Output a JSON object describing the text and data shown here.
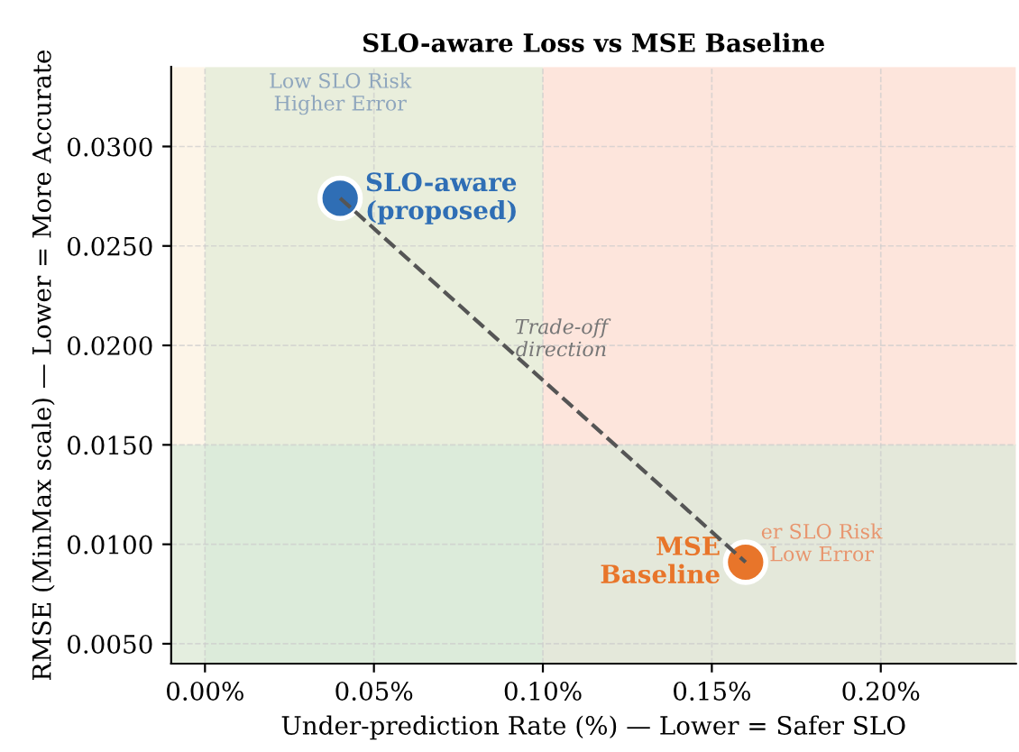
{
  "chart_data": {
    "type": "scatter",
    "title": "SLO-aware Loss vs MSE Baseline",
    "xlabel": "Under-prediction Rate (%) — Lower = Safer SLO",
    "ylabel": "RMSE (MinMax scale) — Lower = More Accurate",
    "series": [
      {
        "type": "line",
        "color": "#555555",
        "line_style": "dashed",
        "marker": "none",
        "values": [
          0.0274,
          0.0091
        ]
      },
      {
        "name": "SLO-aware\n(proposed)",
        "color": "#2f6eb5",
        "marker": "circle",
        "values": [
          0.0274,
          null
        ]
      },
      {
        "name": "MSE\nBaseline",
        "color": "#e8752a",
        "marker": "circle",
        "values": [
          null,
          0.0091
        ]
      }
    ],
    "bands": [
      {
        "axis": "x",
        "from": -0.01,
        "to": 0,
        "color": "#fdf5e8"
      },
      {
        "axis": "x",
        "from": 0,
        "to": 0.1,
        "color": "#e9eedc"
      },
      {
        "axis": "x",
        "from": 0.1,
        "to": 0.24,
        "color": "#fde5dc"
      },
      {
        "axis": "y",
        "from": 0.004,
        "to": 0.015,
        "color": "#d4ead8"
      }
    ],
    "annotations": [
      "Low SLO Risk\nHigher Error",
      "er SLO Risk\nLow Error",
      {
        "text": "Trade-off\ndirection",
        "x": 0.101,
        "y": 0.0203
      }
    ],
    "x": [
      0.04,
      0.16
    ],
    "xlim": [
      -0.01,
      0.24
    ],
    "ylim": [
      0.004,
      0.034
    ],
    "xticks": [
      {
        "value": 0,
        "label": "0.00%"
      },
      {
        "value": 0.05,
        "label": "0.05%"
      },
      {
        "value": 0.1,
        "label": "0.10%"
      },
      {
        "value": 0.15,
        "label": "0.15%"
      },
      {
        "value": 0.2,
        "label": "0.20%"
      }
    ],
    "yticks": [
      {
        "value": 0.005,
        "label": "0.0050"
      },
      {
        "value": 0.01,
        "label": "0.0100"
      },
      {
        "value": 0.015,
        "label": "0.0150"
      },
      {
        "value": 0.02,
        "label": "0.0200"
      },
      {
        "value": 0.025,
        "label": "0.0250"
      },
      {
        "value": 0.03,
        "label": "0.0300"
      }
    ],
    "grid": true,
    "legend": false
  }
}
